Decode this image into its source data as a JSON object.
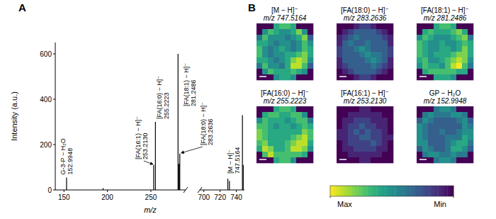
{
  "chart_data": [
    {
      "type": "stem",
      "panel": "A",
      "x_label": "m/z",
      "y_label": "Intensity (a.u.)",
      "x": [
        152.9948,
        195,
        253.213,
        255.2223,
        281.2486,
        282.25,
        283.2636,
        729.5,
        731.5,
        747.5164,
        748.52
      ],
      "values": [
        55,
        8,
        110,
        300,
        600,
        115,
        160,
        50,
        40,
        330,
        110
      ],
      "color": "#000000",
      "xlim": [
        [
          140,
          290
        ],
        [
          695,
          750
        ]
      ],
      "xticks": [
        [
          150,
          200,
          250
        ],
        [
          700,
          720,
          740
        ]
      ],
      "ylim": [
        0,
        650
      ],
      "yticks": [
        0,
        200,
        400,
        600
      ],
      "annotations": [
        {
          "text": "G-3-P − H₂O",
          "mz": "152.9948",
          "x": 152.9948
        },
        {
          "text": "[FA(16:1) − H]⁻",
          "mz": "253.2130",
          "x": 253.213
        },
        {
          "text": "[FA(16:0) − H]⁻",
          "mz": "255.2223",
          "x": 255.2223
        },
        {
          "text": "[FA(18:1) − H]⁻",
          "mz": "281.2486",
          "x": 281.2486
        },
        {
          "text": "[FA(18:0) − H]⁻",
          "mz": "283.2636",
          "x": 283.2636
        },
        {
          "text": "[M − H]⁻",
          "mz": "747.5164",
          "x": 747.5164
        }
      ]
    },
    {
      "type": "heatmap",
      "panel": "B",
      "color_range": [
        0,
        10
      ],
      "color_ticks": [
        {
          "value": 10,
          "label": "Max"
        },
        {
          "value": 0,
          "label": "Min"
        }
      ],
      "images": [
        {
          "title": "[M − H]⁻",
          "subtitle": "m/z 747.5164",
          "cells": [
            [
              0,
              0,
              0,
              6,
              7,
              7,
              6,
              0,
              0,
              0
            ],
            [
              0,
              5,
              7,
              6,
              5,
              5,
              6,
              8,
              5,
              0
            ],
            [
              4,
              7,
              5,
              5,
              5,
              4,
              5,
              6,
              8,
              3
            ],
            [
              6,
              6,
              5,
              4,
              5,
              5,
              4,
              5,
              7,
              5
            ],
            [
              7,
              5,
              4,
              5,
              6,
              5,
              4,
              5,
              7,
              6
            ],
            [
              7,
              5,
              4,
              5,
              5,
              6,
              6,
              7,
              8,
              6
            ],
            [
              6,
              6,
              5,
              4,
              5,
              6,
              8,
              9,
              8,
              5
            ],
            [
              4,
              7,
              5,
              5,
              4,
              6,
              9,
              9,
              7,
              3
            ],
            [
              0,
              5,
              7,
              6,
              6,
              6,
              7,
              6,
              5,
              0
            ],
            [
              0,
              0,
              0,
              5,
              6,
              6,
              5,
              0,
              0,
              0
            ]
          ]
        },
        {
          "title": "[FA(18:0) − H]⁻",
          "subtitle": "m/z 283.2636",
          "cells": [
            [
              0,
              0,
              0,
              1,
              2,
              2,
              1,
              0,
              0,
              0
            ],
            [
              0,
              1,
              2,
              3,
              3,
              3,
              3,
              2,
              1,
              0
            ],
            [
              1,
              2,
              3,
              4,
              3,
              3,
              3,
              3,
              2,
              1
            ],
            [
              1,
              3,
              4,
              3,
              3,
              4,
              3,
              3,
              3,
              1
            ],
            [
              2,
              3,
              3,
              4,
              5,
              4,
              3,
              3,
              3,
              2
            ],
            [
              2,
              3,
              3,
              3,
              4,
              5,
              4,
              4,
              3,
              2
            ],
            [
              1,
              3,
              3,
              3,
              3,
              4,
              5,
              4,
              3,
              1
            ],
            [
              1,
              2,
              3,
              3,
              3,
              3,
              4,
              3,
              2,
              1
            ],
            [
              0,
              1,
              2,
              3,
              3,
              3,
              3,
              2,
              1,
              0
            ],
            [
              0,
              0,
              0,
              1,
              2,
              2,
              1,
              0,
              0,
              0
            ]
          ]
        },
        {
          "title": "[FA(18:1) − H]⁻",
          "subtitle": "m/z 281.2486",
          "cells": [
            [
              0,
              0,
              0,
              6,
              7,
              7,
              6,
              0,
              0,
              0
            ],
            [
              0,
              6,
              7,
              6,
              6,
              6,
              7,
              8,
              6,
              0
            ],
            [
              5,
              7,
              6,
              5,
              5,
              5,
              6,
              7,
              8,
              4
            ],
            [
              7,
              6,
              5,
              5,
              6,
              5,
              5,
              6,
              7,
              6
            ],
            [
              7,
              6,
              5,
              5,
              6,
              6,
              5,
              6,
              8,
              6
            ],
            [
              7,
              6,
              5,
              6,
              6,
              6,
              7,
              8,
              8,
              6
            ],
            [
              6,
              7,
              5,
              5,
              6,
              7,
              8,
              9,
              8,
              5
            ],
            [
              5,
              7,
              6,
              6,
              5,
              7,
              9,
              10,
              7,
              4
            ],
            [
              0,
              6,
              7,
              7,
              7,
              7,
              7,
              6,
              6,
              0
            ],
            [
              0,
              0,
              0,
              6,
              6,
              6,
              5,
              0,
              0,
              0
            ]
          ]
        },
        {
          "title": "[FA(16:0) − H]⁻",
          "subtitle": "m/z 255.2223",
          "cells": [
            [
              0,
              0,
              0,
              6,
              7,
              7,
              6,
              0,
              0,
              0
            ],
            [
              0,
              6,
              7,
              7,
              6,
              6,
              7,
              7,
              5,
              0
            ],
            [
              5,
              7,
              6,
              6,
              6,
              5,
              6,
              7,
              7,
              4
            ],
            [
              7,
              7,
              6,
              5,
              6,
              6,
              5,
              6,
              7,
              6
            ],
            [
              8,
              7,
              6,
              6,
              6,
              6,
              6,
              6,
              8,
              7
            ],
            [
              8,
              7,
              6,
              6,
              6,
              6,
              7,
              8,
              9,
              7
            ],
            [
              7,
              8,
              6,
              6,
              6,
              7,
              8,
              9,
              9,
              6
            ],
            [
              6,
              9,
              8,
              6,
              6,
              7,
              9,
              9,
              8,
              5
            ],
            [
              0,
              7,
              9,
              7,
              7,
              7,
              7,
              7,
              6,
              0
            ],
            [
              0,
              0,
              0,
              6,
              7,
              7,
              5,
              0,
              0,
              0
            ]
          ]
        },
        {
          "title": "[FA(16:1) − H]⁻",
          "subtitle": "m/z 253.2130",
          "cells": [
            [
              0,
              0,
              0,
              0,
              1,
              1,
              0,
              0,
              0,
              0
            ],
            [
              0,
              0,
              1,
              1,
              1,
              1,
              1,
              1,
              0,
              0
            ],
            [
              0,
              1,
              1,
              2,
              2,
              2,
              1,
              1,
              1,
              0
            ],
            [
              0,
              1,
              2,
              2,
              3,
              2,
              2,
              1,
              1,
              0
            ],
            [
              1,
              1,
              2,
              3,
              2,
              3,
              2,
              2,
              1,
              0
            ],
            [
              1,
              1,
              2,
              2,
              3,
              3,
              2,
              2,
              1,
              1
            ],
            [
              0,
              1,
              2,
              2,
              2,
              2,
              3,
              2,
              1,
              0
            ],
            [
              0,
              1,
              1,
              2,
              2,
              2,
              2,
              1,
              1,
              0
            ],
            [
              0,
              0,
              1,
              1,
              1,
              1,
              1,
              1,
              0,
              0
            ],
            [
              0,
              0,
              0,
              0,
              1,
              1,
              0,
              0,
              0,
              0
            ]
          ]
        },
        {
          "title": "GP − H₂O",
          "subtitle": "m/z 152.9948",
          "cells": [
            [
              0,
              0,
              0,
              4,
              5,
              5,
              4,
              0,
              0,
              0
            ],
            [
              0,
              4,
              5,
              4,
              4,
              4,
              5,
              5,
              4,
              0
            ],
            [
              3,
              5,
              4,
              3,
              3,
              3,
              3,
              4,
              5,
              3
            ],
            [
              5,
              4,
              3,
              3,
              3,
              3,
              3,
              3,
              5,
              4
            ],
            [
              5,
              4,
              3,
              3,
              4,
              3,
              3,
              4,
              5,
              5
            ],
            [
              5,
              4,
              3,
              3,
              3,
              4,
              4,
              4,
              6,
              5
            ],
            [
              5,
              5,
              3,
              3,
              3,
              4,
              5,
              6,
              6,
              4
            ],
            [
              3,
              5,
              4,
              3,
              3,
              4,
              6,
              6,
              5,
              3
            ],
            [
              0,
              4,
              5,
              5,
              4,
              4,
              5,
              4,
              4,
              0
            ],
            [
              0,
              0,
              0,
              4,
              5,
              5,
              4,
              0,
              0,
              0
            ]
          ]
        }
      ]
    }
  ]
}
